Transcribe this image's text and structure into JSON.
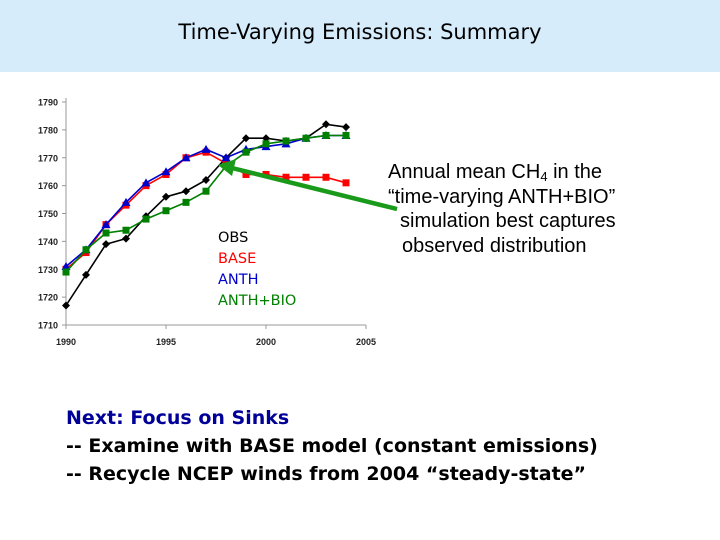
{
  "slide": {
    "title": "Time-Varying Emissions:  Summary",
    "annotation": {
      "line1_prefix": "Annual mean CH",
      "line1_sub": "4",
      "line1_suffix": " in the",
      "line2": "“time-varying ANTH+BIO”",
      "line3": "simulation best captures",
      "line4": "observed distribution"
    },
    "next": {
      "heading": "Next: Focus on Sinks",
      "line1": "-- Examine with BASE model (constant emissions)",
      "line2": "-- Recycle NCEP winds from 2004 “steady-state”"
    }
  },
  "colors": {
    "title_bar": "#d6ecfb",
    "obs": "#000000",
    "base": "#ff0000",
    "anth": "#0000cc",
    "anth_bio": "#008000",
    "arrow": "#1a9a1a",
    "next_heading": "#000099"
  },
  "chart_data": {
    "type": "line",
    "xlim": [
      1990,
      2005
    ],
    "ylim": [
      1710,
      1790
    ],
    "yticks": [
      1710,
      1720,
      1730,
      1740,
      1750,
      1760,
      1770,
      1780,
      1790
    ],
    "xticks": [
      1990,
      1995,
      2000,
      2005
    ],
    "grid": false,
    "legend_position": "lower-middle",
    "series": [
      {
        "name": "OBS",
        "color": "#000000",
        "marker": "diamond",
        "x": [
          1990,
          1991,
          1992,
          1993,
          1994,
          1995,
          1996,
          1997,
          1998,
          1999,
          2000,
          2001,
          2002,
          2003,
          2004
        ],
        "y": [
          1717,
          1728,
          1739,
          1741,
          1749,
          1756,
          1758,
          1762,
          1770,
          1777,
          1777,
          1776,
          1777,
          1782,
          1781
        ]
      },
      {
        "name": "BASE",
        "color": "#ff0000",
        "marker": "square",
        "x": [
          1990,
          1991,
          1992,
          1993,
          1994,
          1995,
          1996,
          1997,
          1998,
          1999,
          2000,
          2001,
          2002,
          2003,
          2004
        ],
        "y": [
          1730,
          1736,
          1746,
          1753,
          1760,
          1764,
          1770,
          1772,
          1768,
          1764,
          1764,
          1763,
          1763,
          1763,
          1761
        ]
      },
      {
        "name": "ANTH",
        "color": "#0000cc",
        "marker": "triangle",
        "x": [
          1990,
          1991,
          1992,
          1993,
          1994,
          1995,
          1996,
          1997,
          1998,
          1999,
          2000,
          2001,
          2002,
          2003,
          2004
        ],
        "y": [
          1731,
          1737,
          1746,
          1754,
          1761,
          1765,
          1770,
          1773,
          1770,
          1773,
          1774,
          1775,
          1777,
          1778,
          1778
        ]
      },
      {
        "name": "ANTH+BIO",
        "color": "#008000",
        "marker": "square",
        "x": [
          1990,
          1991,
          1992,
          1993,
          1994,
          1995,
          1996,
          1997,
          1998,
          1999,
          2000,
          2001,
          2002,
          2003,
          2004
        ],
        "y": [
          1729,
          1737,
          1743,
          1744,
          1748,
          1751,
          1754,
          1758,
          1767,
          1772,
          1775,
          1776,
          1777,
          1778,
          1778
        ]
      }
    ]
  }
}
